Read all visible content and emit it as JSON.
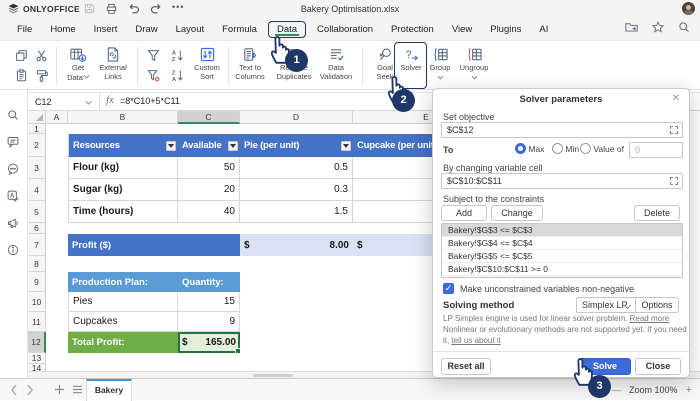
{
  "app": {
    "logo_text": "ONLYOFFICE",
    "title": "Bakery Optimisation.xlsx",
    "more_dots": "•••"
  },
  "menu": {
    "tabs": [
      "File",
      "Home",
      "Insert",
      "Draw",
      "Layout",
      "Formula",
      "Data",
      "Collaboration",
      "Protection",
      "View",
      "Plugins",
      "AI"
    ],
    "active_tab": "Data"
  },
  "toolbar": {
    "get_data": "Get\nData",
    "external_links": "External\nLinks",
    "custom_sort": "Custom\nSort",
    "text_to_columns": "Text to\nColumns",
    "remove_duplicates": "Remove\nDuplicates",
    "data_validation": "Data\nValidation",
    "goal_seek": "Goal\nSeek",
    "solver": "Solver",
    "group": "Group",
    "ungroup": "Ungroup"
  },
  "formula_bar": {
    "name_box": "C12",
    "fx": "fx",
    "formula": "=8*C10+5*C11"
  },
  "sheet": {
    "columns": [
      "A",
      "B",
      "C",
      "D",
      "E"
    ],
    "selected_column": "C",
    "selected_row": "12",
    "rows": [
      {
        "n": "1",
        "cells": []
      },
      {
        "n": "2",
        "cells": [
          {
            "col": "B",
            "text": "Resources",
            "cls": "c-hdr c-bl",
            "filter": true
          },
          {
            "col": "C",
            "text": "Available",
            "cls": "c-hdr",
            "filter": true
          },
          {
            "col": "D",
            "text": "Pie (per unit)",
            "cls": "c-hdr",
            "filter": true
          },
          {
            "col": "E",
            "text": "Cupcake (per unit)",
            "cls": "c-hdr"
          }
        ]
      },
      {
        "n": "3",
        "cells": [
          {
            "col": "B",
            "text": "Flour (kg)",
            "cls": "c-lbl c-bl"
          },
          {
            "col": "C",
            "text": "50",
            "cls": "c-num"
          },
          {
            "col": "D",
            "text": "0.5",
            "cls": "c-num"
          },
          {
            "col": "E",
            "text": "",
            "cls": "c-blank"
          }
        ]
      },
      {
        "n": "4",
        "cells": [
          {
            "col": "B",
            "text": "Sugar (kg)",
            "cls": "c-lbl c-bl"
          },
          {
            "col": "C",
            "text": "20",
            "cls": "c-num"
          },
          {
            "col": "D",
            "text": "0.3",
            "cls": "c-num"
          },
          {
            "col": "E",
            "text": "",
            "cls": "c-blank"
          }
        ]
      },
      {
        "n": "5",
        "cells": [
          {
            "col": "B",
            "text": "Time (hours)",
            "cls": "c-lbl c-bl"
          },
          {
            "col": "C",
            "text": "40",
            "cls": "c-num"
          },
          {
            "col": "D",
            "text": "1.5",
            "cls": "c-num"
          },
          {
            "col": "E",
            "text": "",
            "cls": "c-blank"
          }
        ]
      },
      {
        "n": "6",
        "cells": []
      },
      {
        "n": "7",
        "cells": [
          {
            "col": "B",
            "span": 2,
            "text": "Profit ($)",
            "cls": "c-profitH"
          },
          {
            "col": "D",
            "cur": "$",
            "val": "8.00",
            "cls": "c-profitV"
          },
          {
            "col": "E",
            "cur": "$",
            "val": "",
            "cls": "c-profitV"
          }
        ]
      },
      {
        "n": "8",
        "cells": []
      },
      {
        "n": "9",
        "cells": [
          {
            "col": "B",
            "text": "Production Plan:",
            "cls": "c-planH"
          },
          {
            "col": "C",
            "text": "Quantity:",
            "cls": "c-planH"
          }
        ]
      },
      {
        "n": "10",
        "cells": [
          {
            "col": "B",
            "text": "Pies",
            "cls": "c-plain"
          },
          {
            "col": "C",
            "text": "15",
            "cls": "c-num2"
          }
        ]
      },
      {
        "n": "11",
        "cells": [
          {
            "col": "B",
            "text": "Cupcakes",
            "cls": "c-plain"
          },
          {
            "col": "C",
            "text": "9",
            "cls": "c-num2"
          }
        ]
      },
      {
        "n": "12",
        "cells": [
          {
            "col": "B",
            "text": "Total Profit:",
            "cls": "c-totalH"
          },
          {
            "col": "C",
            "cur": "$",
            "val": "165.00",
            "cls": "c-totalV"
          }
        ]
      },
      {
        "n": "13",
        "cells": []
      },
      {
        "n": "14",
        "cells": []
      }
    ]
  },
  "dialog": {
    "title": "Solver parameters",
    "set_objective_label": "Set objective",
    "objective_value": "$C$12",
    "to_label": "To",
    "radio_max": "Max",
    "radio_min": "Min",
    "radio_value_of": "Value of",
    "value_of": "0",
    "by_changing_label": "By changing variable cell",
    "variable_value": "$C$10:$C$11",
    "constraints_label": "Subject to the constraints",
    "add": "Add",
    "change": "Change",
    "delete": "Delete",
    "constraints": [
      "Bakery!$G$3 <= $C$3",
      "Bakery!$G$4 <= $C$4",
      "Bakery!$G$5 <= $C$5",
      "Bakery!$C$10:$C$11 >= 0"
    ],
    "checkbox_label": "Make unconstrained variables non-negative",
    "solving_method_label": "Solving method",
    "method": "Simplex LP",
    "options": "Options",
    "help1": "LP Simplex engine is used for linear solver problem. ",
    "help1_link": "Read more",
    "help2": "Nonlinear or evolutionary methods are not supported yet. If you need it, ",
    "help2_link": "tell us about it",
    "reset": "Reset all",
    "solve": "Solve",
    "close": "Close"
  },
  "statusbar": {
    "sheet_tab": "Bakery",
    "zoom": "Zoom 100%"
  },
  "annotations": {
    "badge1": "1",
    "badge2": "2",
    "badge3": "3"
  }
}
